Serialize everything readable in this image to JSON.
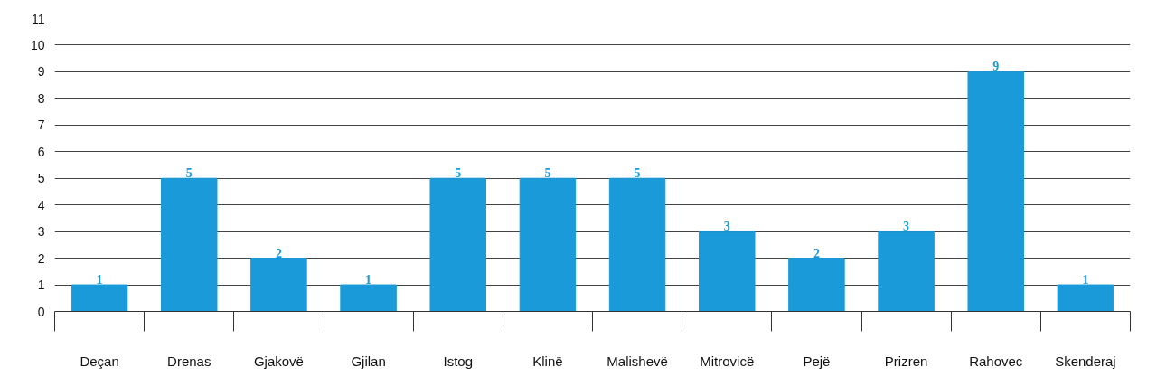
{
  "chart_data": {
    "type": "bar",
    "categories": [
      "Deçan",
      "Drenas",
      "Gjakovë",
      "Gjilan",
      "Istog",
      "Klinë",
      "Malishevë",
      "Mitrovicë",
      "Pejë",
      "Prizren",
      "Rahovec",
      "Skenderaj"
    ],
    "values": [
      1,
      5,
      2,
      1,
      5,
      5,
      5,
      3,
      2,
      3,
      9,
      1
    ],
    "color": "#1a9ad9",
    "ylim": [
      0,
      11
    ],
    "yticks": [
      0,
      1,
      2,
      3,
      4,
      5,
      6,
      7,
      8,
      9,
      10,
      11
    ],
    "grid": "y",
    "data_labels": true
  }
}
